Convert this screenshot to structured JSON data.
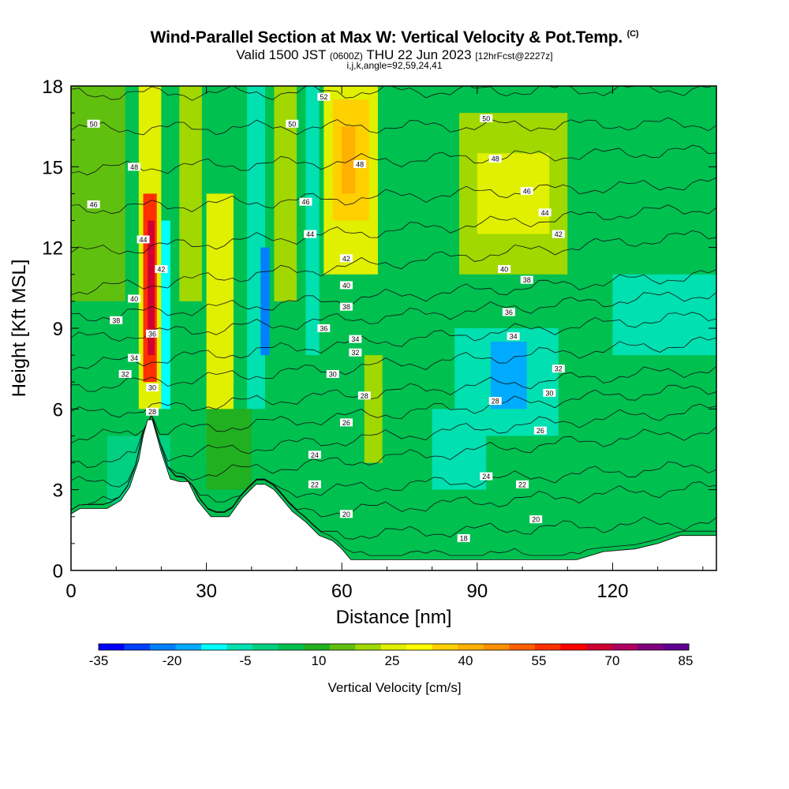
{
  "header": {
    "title": "Wind-Parallel Section at Max W: Vertical Velocity & Pot.Temp.",
    "copyright_mark": "(C)",
    "subtitle_valid": "Valid 1500 JST",
    "subtitle_utc": "(0600Z)",
    "subtitle_date": "THU 22 Jun 2023",
    "subtitle_fcst": "[12hrFcst@2227z]",
    "subtitle_params": "i,j,k,angle=92,59,24,41"
  },
  "chart_data": {
    "type": "heatmap",
    "title": "Wind-Parallel Section at Max W: Vertical Velocity & Pot.Temp.",
    "xlabel": "Distance [nm]",
    "ylabel": "Height [Kft MSL]",
    "xlim": [
      0,
      143
    ],
    "ylim": [
      0,
      18
    ],
    "x_ticks": [
      0,
      30,
      60,
      90,
      120
    ],
    "y_ticks": [
      0,
      3,
      6,
      9,
      12,
      15,
      18
    ],
    "colorbar": {
      "label": "Vertical Velocity [cm/s]",
      "tick_labels": [
        "-35",
        "-20",
        "-5",
        "10",
        "25",
        "40",
        "55",
        "70",
        "85"
      ],
      "colors": [
        "#0000ff",
        "#0040ff",
        "#0080ff",
        "#00aaff",
        "#00ffff",
        "#00e0b0",
        "#00d080",
        "#00c050",
        "#20b020",
        "#60c010",
        "#a0d800",
        "#e0f000",
        "#ffff00",
        "#ffd000",
        "#ffb000",
        "#ff9000",
        "#ff6000",
        "#ff3000",
        "#ff0000",
        "#d00030",
        "#b00060",
        "#800080",
        "#600090"
      ]
    },
    "velocity_cells": [
      {
        "x0": 0,
        "x1": 143,
        "y0": 0,
        "y1": 18,
        "v": 6
      },
      {
        "x0": 0,
        "x1": 12,
        "y0": 10,
        "y1": 18,
        "v": 18
      },
      {
        "x0": 15,
        "x1": 20,
        "y0": 6,
        "y1": 18,
        "v": 30
      },
      {
        "x0": 16,
        "x1": 19,
        "y0": 7,
        "y1": 14,
        "v": 60
      },
      {
        "x0": 17,
        "x1": 18.5,
        "y0": 8,
        "y1": 13,
        "v": 75
      },
      {
        "x0": 20,
        "x1": 22,
        "y0": 6,
        "y1": 13,
        "v": -15
      },
      {
        "x0": 24,
        "x1": 29,
        "y0": 10,
        "y1": 18,
        "v": 22
      },
      {
        "x0": 30,
        "x1": 36,
        "y0": 4,
        "y1": 14,
        "v": 25
      },
      {
        "x0": 39,
        "x1": 43,
        "y0": 6,
        "y1": 18,
        "v": -8
      },
      {
        "x0": 42,
        "x1": 44,
        "y0": 8,
        "y1": 12,
        "v": -25
      },
      {
        "x0": 45,
        "x1": 50,
        "y0": 10,
        "y1": 18,
        "v": 22
      },
      {
        "x0": 52,
        "x1": 55,
        "y0": 8,
        "y1": 18,
        "v": -10
      },
      {
        "x0": 56,
        "x1": 68,
        "y0": 11,
        "y1": 18,
        "v": 25
      },
      {
        "x0": 58,
        "x1": 66,
        "y0": 13,
        "y1": 17.5,
        "v": 40
      },
      {
        "x0": 60,
        "x1": 63,
        "y0": 14,
        "y1": 16.5,
        "v": 48
      },
      {
        "x0": 65,
        "x1": 69,
        "y0": 4,
        "y1": 8,
        "v": 24
      },
      {
        "x0": 86,
        "x1": 110,
        "y0": 11,
        "y1": 17,
        "v": 22
      },
      {
        "x0": 90,
        "x1": 106,
        "y0": 12.5,
        "y1": 15.5,
        "v": 30
      },
      {
        "x0": 80,
        "x1": 92,
        "y0": 3,
        "y1": 6,
        "v": -5
      },
      {
        "x0": 85,
        "x1": 108,
        "y0": 5,
        "y1": 9,
        "v": -5
      },
      {
        "x0": 93,
        "x1": 101,
        "y0": 6,
        "y1": 8.5,
        "v": -20
      },
      {
        "x0": 120,
        "x1": 143,
        "y0": 8,
        "y1": 11,
        "v": -5
      },
      {
        "x0": 8,
        "x1": 22,
        "y0": 2.5,
        "y1": 5,
        "v": -3
      },
      {
        "x0": 30,
        "x1": 40,
        "y0": 3,
        "y1": 6,
        "v": 12
      }
    ],
    "terrain": {
      "x": [
        0,
        2,
        5,
        8,
        11,
        13,
        15,
        16,
        17,
        18,
        20,
        22,
        24,
        26,
        28,
        31,
        35,
        38,
        41,
        43,
        45,
        47,
        49,
        52,
        55,
        58,
        60,
        62,
        65,
        70,
        80,
        90,
        100,
        108,
        112,
        118,
        125,
        130,
        135,
        140,
        143
      ],
      "y": [
        2.1,
        2.3,
        2.3,
        2.3,
        2.6,
        3.1,
        4.1,
        5.0,
        5.6,
        5.6,
        4.4,
        3.4,
        3.3,
        3.3,
        2.6,
        2.0,
        2.0,
        2.7,
        3.2,
        3.2,
        3.0,
        2.6,
        2.2,
        1.8,
        1.3,
        1.1,
        0.8,
        0.4,
        0.4,
        0.4,
        0.4,
        0.4,
        0.4,
        0.4,
        0.4,
        0.7,
        0.8,
        1.0,
        1.3,
        1.3,
        1.3
      ]
    },
    "theta_contours": [
      {
        "label": "18",
        "y_left": 0.5,
        "y_right": 0.6,
        "label_x": 87,
        "label_y": 1.2
      },
      {
        "label": "20",
        "y_left": 1.0,
        "y_right": 1.8,
        "label_x": 61,
        "label_y": 2.1
      },
      {
        "label": "20",
        "y_left": 1.0,
        "y_right": 1.8,
        "label_x": 103,
        "label_y": 1.9
      },
      {
        "label": "22",
        "y_left": 1.6,
        "y_right": 3.1,
        "label_x": 54,
        "label_y": 3.2
      },
      {
        "label": "22",
        "y_left": 1.6,
        "y_right": 3.1,
        "label_x": 100,
        "label_y": 3.2
      },
      {
        "label": "24",
        "y_left": 2.4,
        "y_right": 3.9,
        "label_x": 54,
        "label_y": 4.3
      },
      {
        "label": "24",
        "y_left": 2.4,
        "y_right": 3.9,
        "label_x": 92,
        "label_y": 3.5
      },
      {
        "label": "26",
        "y_left": 3.2,
        "y_right": 5.2,
        "label_x": 61,
        "label_y": 5.5
      },
      {
        "label": "26",
        "y_left": 3.2,
        "y_right": 5.2,
        "label_x": 104,
        "label_y": 5.2
      },
      {
        "label": "28",
        "y_left": 4.0,
        "y_right": 6.0,
        "label_x": 18,
        "label_y": 5.9
      },
      {
        "label": "28",
        "y_left": 4.0,
        "y_right": 6.0,
        "label_x": 65,
        "label_y": 6.5
      },
      {
        "label": "28",
        "y_left": 4.0,
        "y_right": 6.0,
        "label_x": 94,
        "label_y": 6.3
      },
      {
        "label": "30",
        "y_left": 4.9,
        "y_right": 6.8,
        "label_x": 18,
        "label_y": 6.8
      },
      {
        "label": "30",
        "y_left": 4.9,
        "y_right": 6.8,
        "label_x": 58,
        "label_y": 7.3
      },
      {
        "label": "30",
        "y_left": 4.9,
        "y_right": 6.8,
        "label_x": 106,
        "label_y": 6.6
      },
      {
        "label": "32",
        "y_left": 5.8,
        "y_right": 7.5,
        "label_x": 12,
        "label_y": 7.3
      },
      {
        "label": "32",
        "y_left": 5.8,
        "y_right": 7.5,
        "label_x": 63,
        "label_y": 8.1
      },
      {
        "label": "32",
        "y_left": 5.8,
        "y_right": 7.5,
        "label_x": 108,
        "label_y": 7.5
      },
      {
        "label": "34",
        "y_left": 6.8,
        "y_right": 8.5,
        "label_x": 14,
        "label_y": 7.9
      },
      {
        "label": "34",
        "y_left": 6.8,
        "y_right": 8.5,
        "label_x": 63,
        "label_y": 8.6
      },
      {
        "label": "34",
        "y_left": 6.8,
        "y_right": 8.5,
        "label_x": 98,
        "label_y": 8.7
      },
      {
        "label": "36",
        "y_left": 7.6,
        "y_right": 9.5,
        "label_x": 18,
        "label_y": 8.8
      },
      {
        "label": "36",
        "y_left": 7.6,
        "y_right": 9.5,
        "label_x": 56,
        "label_y": 9.0
      },
      {
        "label": "36",
        "y_left": 7.6,
        "y_right": 9.5,
        "label_x": 97,
        "label_y": 9.6
      },
      {
        "label": "38",
        "y_left": 8.6,
        "y_right": 10.3,
        "label_x": 10,
        "label_y": 9.3
      },
      {
        "label": "38",
        "y_left": 8.6,
        "y_right": 10.3,
        "label_x": 61,
        "label_y": 9.8
      },
      {
        "label": "38",
        "y_left": 8.6,
        "y_right": 10.3,
        "label_x": 101,
        "label_y": 10.8
      },
      {
        "label": "40",
        "y_left": 9.4,
        "y_right": 11.0,
        "label_x": 14,
        "label_y": 10.1
      },
      {
        "label": "40",
        "y_left": 9.4,
        "y_right": 11.0,
        "label_x": 61,
        "label_y": 10.6
      },
      {
        "label": "40",
        "y_left": 9.4,
        "y_right": 11.0,
        "label_x": 96,
        "label_y": 11.2
      },
      {
        "label": "42",
        "y_left": 10.4,
        "y_right": 12.5,
        "label_x": 20,
        "label_y": 11.2
      },
      {
        "label": "42",
        "y_left": 10.4,
        "y_right": 12.5,
        "label_x": 61,
        "label_y": 11.6
      },
      {
        "label": "42",
        "y_left": 10.4,
        "y_right": 12.5,
        "label_x": 108,
        "label_y": 12.5
      },
      {
        "label": "44",
        "y_left": 11.8,
        "y_right": 13.5,
        "label_x": 16,
        "label_y": 12.3
      },
      {
        "label": "44",
        "y_left": 11.8,
        "y_right": 13.5,
        "label_x": 53,
        "label_y": 12.5
      },
      {
        "label": "44",
        "y_left": 11.8,
        "y_right": 13.5,
        "label_x": 105,
        "label_y": 13.3
      },
      {
        "label": "46",
        "y_left": 13.4,
        "y_right": 14.4,
        "label_x": 5,
        "label_y": 13.6
      },
      {
        "label": "46",
        "y_left": 13.4,
        "y_right": 14.4,
        "label_x": 52,
        "label_y": 13.7
      },
      {
        "label": "46",
        "y_left": 13.4,
        "y_right": 14.4,
        "label_x": 101,
        "label_y": 14.1
      },
      {
        "label": "48",
        "y_left": 14.9,
        "y_right": 15.6,
        "label_x": 14,
        "label_y": 15.0
      },
      {
        "label": "48",
        "y_left": 14.9,
        "y_right": 15.6,
        "label_x": 64,
        "label_y": 15.1
      },
      {
        "label": "48",
        "y_left": 14.9,
        "y_right": 15.6,
        "label_x": 94,
        "label_y": 15.3
      },
      {
        "label": "50",
        "y_left": 16.4,
        "y_right": 16.6,
        "label_x": 5,
        "label_y": 16.6
      },
      {
        "label": "50",
        "y_left": 16.4,
        "y_right": 16.6,
        "label_x": 49,
        "label_y": 16.6
      },
      {
        "label": "50",
        "y_left": 16.4,
        "y_right": 16.6,
        "label_x": 92,
        "label_y": 16.8
      },
      {
        "label": "52",
        "y_left": 17.7,
        "y_right": 17.9,
        "label_x": 56,
        "label_y": 17.6
      }
    ]
  }
}
